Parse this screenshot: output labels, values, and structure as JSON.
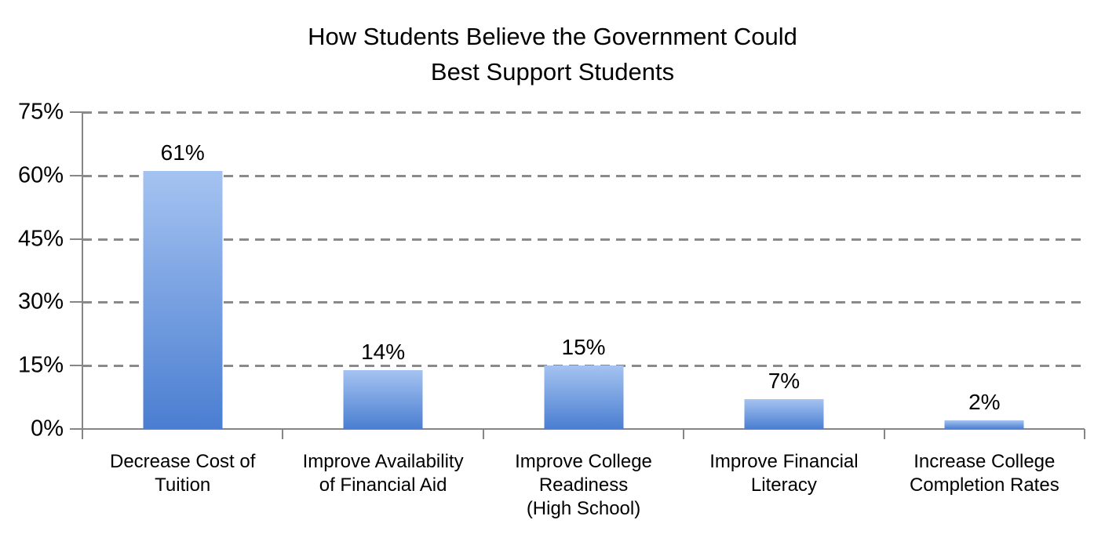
{
  "chart_data": {
    "type": "bar",
    "title": "How Students Believe the Government Could\nBest Support Students",
    "categories": [
      "Decrease Cost of Tuition",
      "Improve Availability of Financial Aid",
      "Improve College Readiness (High School)",
      "Improve Financial Literacy",
      "Increase College Completion Rates"
    ],
    "categories_wrapped": [
      [
        "Decrease Cost of",
        "Tuition"
      ],
      [
        "Improve Availability",
        "of Financial Aid"
      ],
      [
        "Improve College",
        "Readiness",
        "(High School)"
      ],
      [
        "Improve Financial",
        "Literacy"
      ],
      [
        "Increase College",
        "Completion Rates"
      ]
    ],
    "values": [
      61,
      14,
      15,
      7,
      2
    ],
    "data_labels": [
      "61%",
      "14%",
      "15%",
      "7%",
      "2%"
    ],
    "xlabel": "",
    "ylabel": "",
    "ylim": [
      0,
      75
    ],
    "yticks": [
      {
        "value": 0,
        "label": "0%"
      },
      {
        "value": 15,
        "label": "15%"
      },
      {
        "value": 30,
        "label": "30%"
      },
      {
        "value": 45,
        "label": "45%"
      },
      {
        "value": 60,
        "label": "60%"
      },
      {
        "value": 75,
        "label": "75%"
      }
    ],
    "grid": "horizontal-dashed",
    "legend": "none",
    "colors": {
      "bar_gradient_top": "#a5c3f1",
      "bar_gradient_bottom": "#4a7ed1",
      "axis": "#868686",
      "gridline": "#8a8a8a",
      "text": "#000000",
      "background": "#ffffff"
    }
  }
}
